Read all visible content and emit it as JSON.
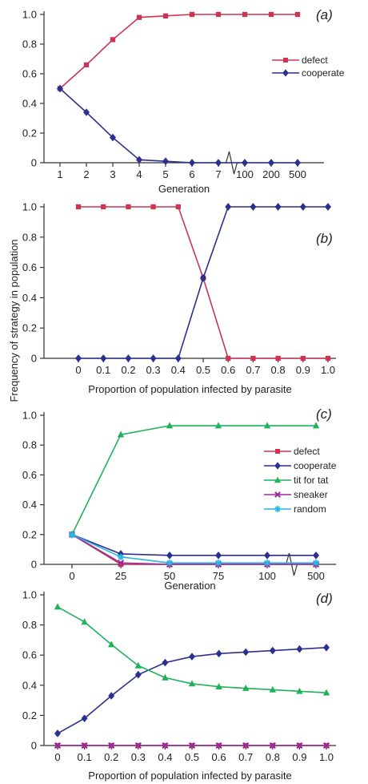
{
  "shared_ylabel": "Frequency of strategy in population",
  "colors": {
    "defect": "#cc3355",
    "cooperate": "#2b2f8f",
    "tit_for_tat": "#1fb25a",
    "sneaker": "#9a2a9a",
    "random": "#29b6e8",
    "axis": "#333333"
  },
  "chart_data": [
    {
      "type": "line",
      "panel_label": "(a)",
      "xlabel": "Generation",
      "categories": [
        "1",
        "2",
        "3",
        "4",
        "5",
        "6",
        "7",
        "100",
        "200",
        "500"
      ],
      "axis_break_after": "7",
      "ylim": [
        0,
        1.0
      ],
      "yticks": [
        "0",
        "0.2",
        "0.4",
        "0.6",
        "0.8",
        "1.0"
      ],
      "legend_placement": "right",
      "series": [
        {
          "name": "defect",
          "marker": "square",
          "color": "#cc3355",
          "values": [
            0.5,
            0.66,
            0.83,
            0.98,
            0.99,
            1.0,
            1.0,
            1.0,
            1.0,
            1.0
          ]
        },
        {
          "name": "cooperate",
          "marker": "diamond",
          "color": "#2b2f8f",
          "values": [
            0.5,
            0.34,
            0.17,
            0.02,
            0.01,
            0.0,
            0.0,
            0.0,
            0.0,
            0.0
          ]
        }
      ]
    },
    {
      "type": "line",
      "panel_label": "(b)",
      "xlabel": "Proportion of population infected by parasite",
      "categories": [
        "0",
        "0.1",
        "0.2",
        "0.3",
        "0.4",
        "0.5",
        "0.6",
        "0.7",
        "0.8",
        "0.9",
        "1.0"
      ],
      "ylim": [
        0,
        1.0
      ],
      "yticks": [
        "0",
        "0.2",
        "0.4",
        "0.6",
        "0.8",
        "1.0"
      ],
      "series": [
        {
          "marker": "square",
          "color": "#cc3355",
          "values": [
            1.0,
            1.0,
            1.0,
            1.0,
            1.0,
            0.53,
            0.0,
            0.0,
            0.0,
            0.0,
            0.0
          ]
        },
        {
          "marker": "diamond",
          "color": "#2b2f8f",
          "values": [
            0.0,
            0.0,
            0.0,
            0.0,
            0.0,
            0.53,
            1.0,
            1.0,
            1.0,
            1.0,
            1.0
          ]
        }
      ]
    },
    {
      "type": "line",
      "panel_label": "(c)",
      "xlabel": "Generation",
      "categories": [
        "0",
        "25",
        "50",
        "75",
        "100",
        "500"
      ],
      "axis_break_after": "100",
      "ylim": [
        0,
        1.0
      ],
      "yticks": [
        "0",
        "0.2",
        "0.4",
        "0.6",
        "0.8",
        "1.0"
      ],
      "legend_placement": "right",
      "series": [
        {
          "name": "defect",
          "marker": "square",
          "color": "#cc3355",
          "values": [
            0.2,
            0.0,
            0.0,
            0.0,
            0.0,
            0.0
          ]
        },
        {
          "name": "cooperate",
          "marker": "diamond",
          "color": "#2b2f8f",
          "values": [
            0.2,
            0.07,
            0.06,
            0.06,
            0.06,
            0.06
          ]
        },
        {
          "name": "tit for tat",
          "marker": "triangle",
          "color": "#1fb25a",
          "values": [
            0.2,
            0.87,
            0.93,
            0.93,
            0.93,
            0.93
          ]
        },
        {
          "name": "sneaker",
          "marker": "x",
          "color": "#9a2a9a",
          "values": [
            0.2,
            0.01,
            0.0,
            0.0,
            0.0,
            0.0
          ]
        },
        {
          "name": "random",
          "marker": "star",
          "color": "#29b6e8",
          "values": [
            0.2,
            0.05,
            0.01,
            0.01,
            0.01,
            0.01
          ]
        }
      ]
    },
    {
      "type": "line",
      "panel_label": "(d)",
      "xlabel": "Proportion of population infected by parasite",
      "categories": [
        "0",
        "0.1",
        "0.2",
        "0.3",
        "0.4",
        "0.5",
        "0.6",
        "0.7",
        "0.8",
        "0.9",
        "1.0"
      ],
      "ylim": [
        0,
        1.0
      ],
      "yticks": [
        "0",
        "0.2",
        "0.4",
        "0.6",
        "0.8",
        "1.0"
      ],
      "series": [
        {
          "marker": "square",
          "color": "#cc3355",
          "values": [
            0,
            0,
            0,
            0,
            0,
            0,
            0,
            0,
            0,
            0,
            0
          ]
        },
        {
          "marker": "x",
          "color": "#9a2a9a",
          "values": [
            0,
            0,
            0,
            0,
            0,
            0,
            0,
            0,
            0,
            0,
            0
          ]
        },
        {
          "marker": "diamond",
          "color": "#2b2f8f",
          "values": [
            0.08,
            0.18,
            0.33,
            0.47,
            0.55,
            0.59,
            0.61,
            0.62,
            0.63,
            0.64,
            0.65
          ]
        },
        {
          "marker": "triangle",
          "color": "#1fb25a",
          "values": [
            0.92,
            0.82,
            0.67,
            0.53,
            0.45,
            0.41,
            0.39,
            0.38,
            0.37,
            0.36,
            0.35
          ]
        }
      ]
    }
  ]
}
